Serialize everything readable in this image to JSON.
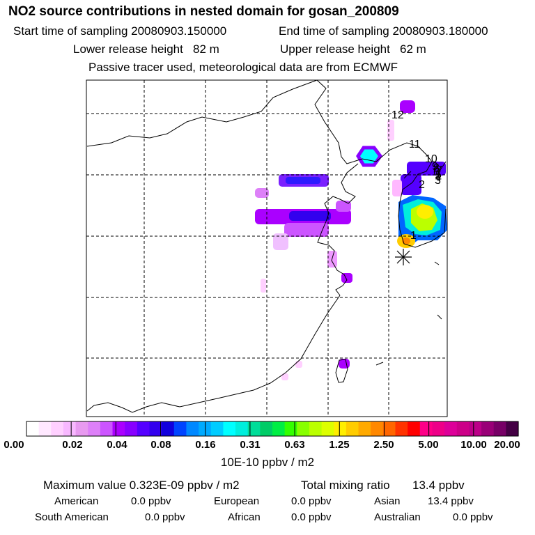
{
  "header": {
    "title": "NO2 source contributions in nested domain for gosan_200809",
    "start_label": "Start time of sampling 20080903.150000",
    "end_label": "End time of sampling 20080903.180000",
    "lower_label": "Lower release height   82 m",
    "upper_label": "Upper release height   62 m",
    "note": "Passive tracer used, meteorological data are from ECMWF"
  },
  "colorbar": {
    "units": "10E-10 ppbv / m2",
    "labels": [
      "0.00",
      "0.02",
      "0.04",
      "0.08",
      "0.16",
      "0.31",
      "0.63",
      "1.25",
      "2.50",
      "5.00",
      "10.00",
      "20.00"
    ],
    "colors": [
      "#ffffff",
      "#ffe8ff",
      "#ffd0ff",
      "#f8b8ff",
      "#e89af0",
      "#dd80f8",
      "#cc55ff",
      "#aa00ff",
      "#8800ff",
      "#5500ff",
      "#3300ee",
      "#1100dd",
      "#0044ff",
      "#0088ff",
      "#00aaff",
      "#00ccff",
      "#00ffff",
      "#00eedd",
      "#00dd99",
      "#00cc66",
      "#00ee44",
      "#33ff00",
      "#88ff00",
      "#bbff00",
      "#ddff00",
      "#ffee00",
      "#ffcc00",
      "#ffaa00",
      "#ff8800",
      "#ff6600",
      "#ff3300",
      "#ff0000",
      "#ff0088",
      "#ee0088",
      "#dd0099",
      "#cc0088",
      "#bb0088",
      "#990077",
      "#770066",
      "#440044"
    ]
  },
  "chart_data": {
    "type": "heatmap",
    "title": "NO2 source contributions in nested domain for gosan_200809",
    "units": "10E-10 ppbv / m2",
    "color_scale_levels": [
      0.0,
      0.02,
      0.04,
      0.08,
      0.16,
      0.31,
      0.63,
      1.25,
      2.5,
      5.0,
      10.0,
      20.0
    ],
    "receptor": "gosan",
    "source_area_labels": [
      "1",
      "2",
      "3",
      "4",
      "5",
      "6",
      "7",
      "8",
      "9",
      "10",
      "11",
      "12"
    ],
    "maximum_value": "0.323E-09 ppbv / m2",
    "total_mixing_ratio": "13.4 ppbv",
    "regional_contributions_ppbv": {
      "American": 0.0,
      "European": 0.0,
      "Asian": 13.4,
      "South American": 0.0,
      "African": 0.0,
      "Australian": 0.0
    }
  },
  "labels": {
    "max": "Maximum value  0.323E-09 ppbv / m2",
    "total": "Total mixing ratio",
    "total_value": "13.4 ppbv",
    "american": "American",
    "american_v": "0.0 ppbv",
    "european": "European",
    "european_v": "0.0 ppbv",
    "asian": "Asian",
    "asian_v": "13.4 ppbv",
    "southamerican": "South American",
    "southamerican_v": "0.0 ppbv",
    "african": "African",
    "african_v": "0.0 ppbv",
    "australian": "Australian",
    "australian_v": "0.0 ppbv"
  }
}
